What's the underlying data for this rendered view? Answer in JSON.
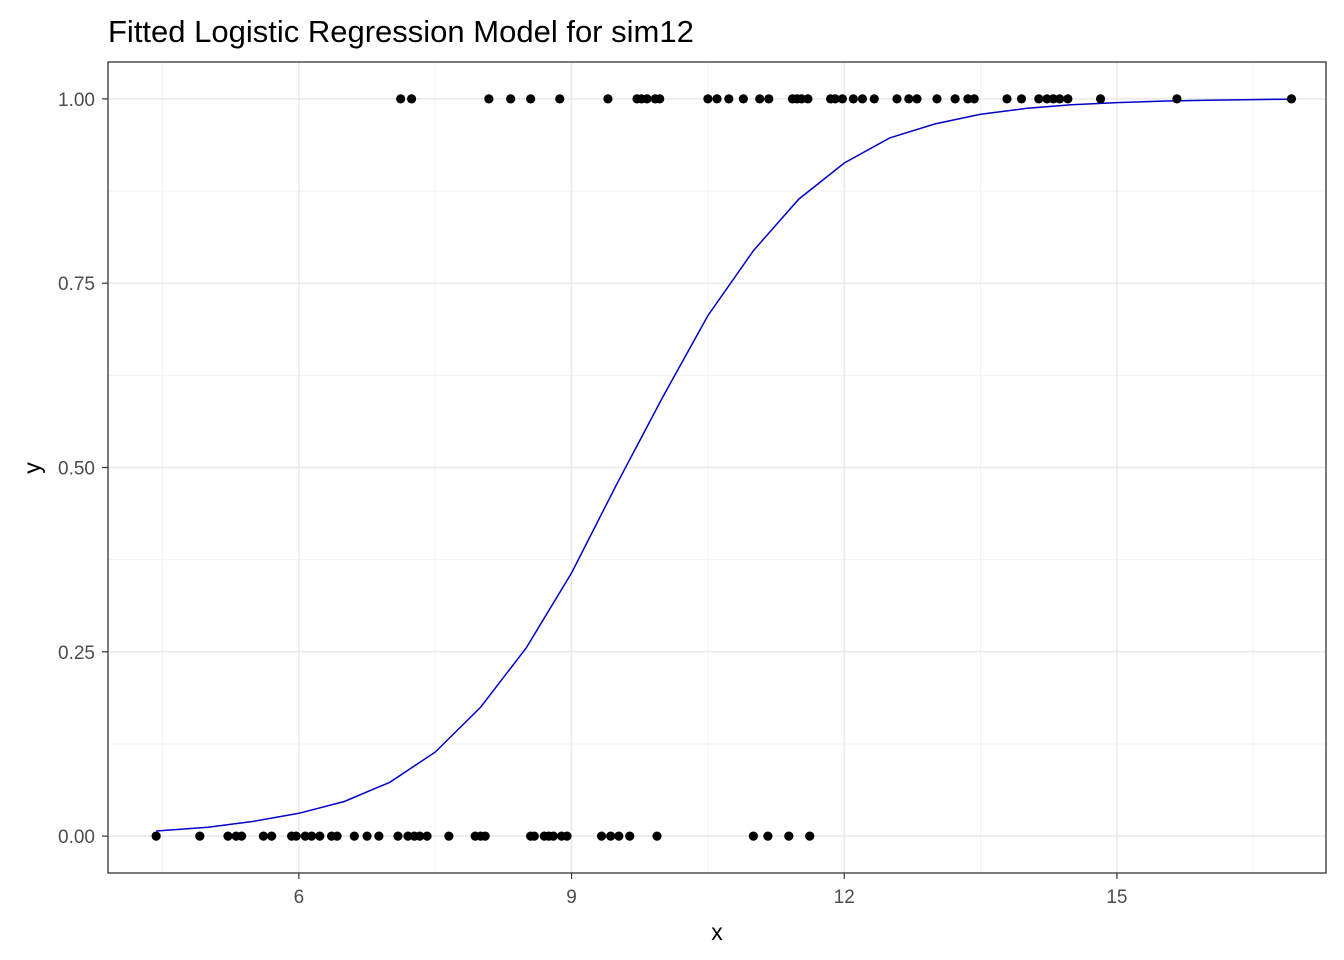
{
  "chart_data": {
    "type": "scatter",
    "title": "Fitted Logistic Regression Model for sim12",
    "xlabel": "x",
    "ylabel": "y",
    "xlim": [
      3.9,
      17.3
    ],
    "ylim": [
      -0.05,
      1.05
    ],
    "x_ticks": [
      6,
      9,
      12,
      15
    ],
    "x_tick_labels": [
      "6",
      "9",
      "12",
      "15"
    ],
    "x_minor_ticks": [
      4.5,
      7.5,
      10.5,
      13.5,
      16.5
    ],
    "y_ticks": [
      0,
      0.25,
      0.5,
      0.75,
      1
    ],
    "y_tick_labels": [
      "0.00",
      "0.25",
      "0.50",
      "0.75",
      "1.00"
    ],
    "y_minor_ticks": [
      0.125,
      0.375,
      0.625,
      0.875
    ],
    "grid": true,
    "legend": "none",
    "series": [
      {
        "kind": "points",
        "color": "#000000",
        "y1_x": [
          7.12,
          7.24,
          8.09,
          8.33,
          8.55,
          8.87,
          9.4,
          9.72,
          9.77,
          9.83,
          9.92,
          9.97,
          10.5,
          10.6,
          10.73,
          10.89,
          11.07,
          11.17,
          11.43,
          11.48,
          11.53,
          11.6,
          11.85,
          11.9,
          11.98,
          12.1,
          12.2,
          12.33,
          12.58,
          12.71,
          12.8,
          13.02,
          13.22,
          13.36,
          13.43,
          13.79,
          13.95,
          14.14,
          14.23,
          14.3,
          14.37,
          14.46,
          14.82,
          15.66,
          16.92
        ],
        "y0_x": [
          4.43,
          4.91,
          5.22,
          5.31,
          5.37,
          5.61,
          5.7,
          5.92,
          5.97,
          6.07,
          6.14,
          6.23,
          6.36,
          6.42,
          6.61,
          6.75,
          6.88,
          7.09,
          7.2,
          7.27,
          7.33,
          7.41,
          7.65,
          7.94,
          8.0,
          8.05,
          8.55,
          8.59,
          8.7,
          8.75,
          8.8,
          8.89,
          8.95,
          9.33,
          9.43,
          9.52,
          9.64,
          9.94,
          11.0,
          11.16,
          11.39,
          11.62
        ]
      },
      {
        "kind": "fitted-curve",
        "color": "#0000cc",
        "x": [
          4.43,
          5.0,
          5.5,
          6.0,
          6.5,
          7.0,
          7.5,
          8.0,
          8.5,
          9.0,
          9.5,
          10.0,
          10.5,
          11.0,
          11.5,
          12.0,
          12.5,
          13.0,
          13.5,
          14.0,
          14.5,
          15.0,
          15.5,
          16.0,
          16.5,
          16.92
        ],
        "y": [
          0.007,
          0.012,
          0.02,
          0.031,
          0.047,
          0.073,
          0.114,
          0.175,
          0.255,
          0.357,
          0.478,
          0.595,
          0.706,
          0.794,
          0.864,
          0.913,
          0.947,
          0.966,
          0.979,
          0.987,
          0.992,
          0.995,
          0.997,
          0.998,
          0.999,
          0.9995
        ]
      }
    ]
  }
}
